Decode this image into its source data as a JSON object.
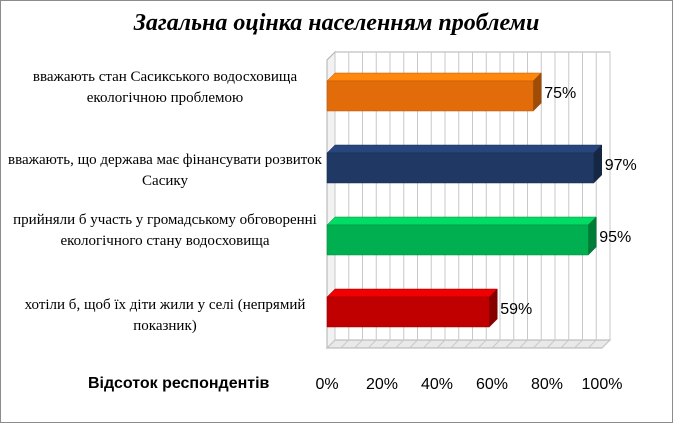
{
  "chart_data": {
    "type": "bar",
    "orientation": "horizontal",
    "title": "Загальна оцінка населенням проблеми",
    "xlabel": "Відсоток респондентів",
    "categories": [
      "вважають стан Сасикського водосховища екологічною проблемою",
      "вважають, що держава має фінансувати розвиток Сасику",
      "прийняли б участь у громадському обговоренні екологічного стану водосховища",
      "хотіли б, щоб їх діти жили у селі (непрямий показник)"
    ],
    "values": [
      75,
      97,
      95,
      59
    ],
    "data_labels": [
      "75%",
      "97%",
      "95%",
      "59%"
    ],
    "colors": [
      "#e36c0a",
      "#1f3864",
      "#00b050",
      "#c00000"
    ],
    "xlim": [
      0,
      100
    ],
    "ticks": [
      "0%",
      "20%",
      "40%",
      "60%",
      "80%",
      "100%"
    ],
    "grid": true,
    "style": "3d"
  }
}
